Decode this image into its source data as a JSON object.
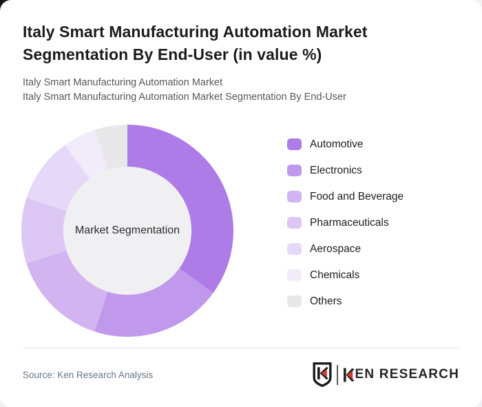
{
  "page": {
    "title": "Italy Smart Manufacturing Automation Market Segmentation By End-User (in value %)",
    "subtitle_line1": "Italy Smart Manufacturing Automation Market",
    "subtitle_line2": "Italy Smart Manufacturing Automation Market Segmentation By End-User"
  },
  "chart_data": {
    "type": "pie",
    "variant": "donut",
    "title": "Italy Smart Manufacturing Automation Market Segmentation By End-User (in value %)",
    "center_label": "Market Segmentation",
    "unit": "%",
    "start_angle_deg": 0,
    "direction": "clockwise",
    "legend_position": "right",
    "categories": [
      "Automotive",
      "Electronics",
      "Food and Beverage",
      "Pharmaceuticals",
      "Aerospace",
      "Chemicals",
      "Others"
    ],
    "values": [
      35,
      20,
      15,
      10,
      10,
      5,
      5
    ],
    "colors": [
      "#ae7ce6",
      "#c099ec",
      "#d2b4f1",
      "#dcc6f4",
      "#e6d8f8",
      "#f2ecfa",
      "#e8e7e9"
    ],
    "inner_circle_color": "#f0eff1"
  },
  "footer": {
    "source": "Source: Ken Research Analysis",
    "brand_name": "KEN RESEARCH",
    "brand_text_rest": "EN RESEARCH",
    "brand_accent_color": "#d9382f",
    "brand_text_color": "#242427"
  }
}
